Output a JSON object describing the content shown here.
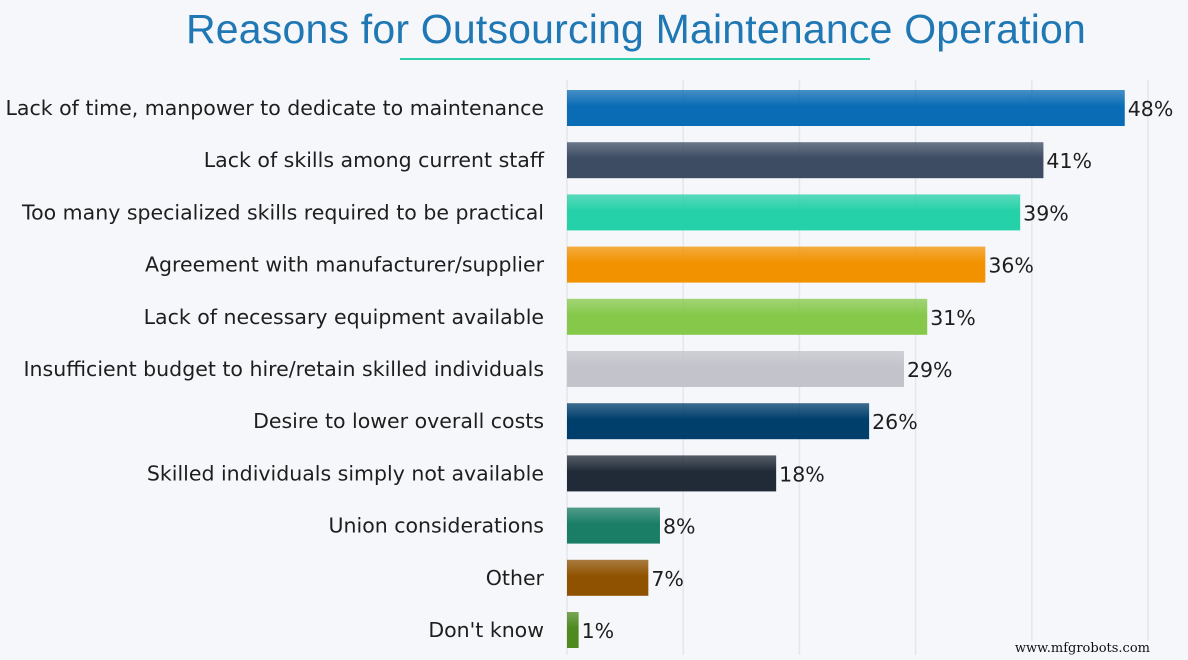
{
  "chart_data": {
    "type": "bar",
    "orientation": "horizontal",
    "title": "Reasons for Outsourcing Maintenance Operation",
    "categories": [
      "Lack of time, manpower to dedicate to maintenance",
      "Lack of skills among current staff",
      "Too many specialized skills required to be practical",
      "Agreement with manufacturer/supplier",
      "Lack of necessary equipment available",
      "Insufficient budget to hire/retain skilled individuals",
      "Desire to lower overall costs",
      "Skilled individuals simply not available",
      "Union considerations",
      "Other",
      "Don't know"
    ],
    "values": [
      48,
      41,
      39,
      36,
      31,
      29,
      26,
      18,
      8,
      7,
      1
    ],
    "data_labels": [
      "48%",
      "41%",
      "39%",
      "36%",
      "31%",
      "29%",
      "26%",
      "18%",
      "8%",
      "7%",
      "1%"
    ],
    "colors": [
      "#0a6cb4",
      "#3d4c63",
      "#25d1a8",
      "#f39200",
      "#86c94a",
      "#c3c3cb",
      "#003f6c",
      "#212b38",
      "#1a7e66",
      "#8f5200",
      "#4e8a1f"
    ],
    "xlim": [
      0,
      50
    ],
    "grid": true,
    "xlabel": "",
    "ylabel": ""
  },
  "title_accent_color": "#2ecfa8",
  "watermark": "www.mfgrobots.com"
}
